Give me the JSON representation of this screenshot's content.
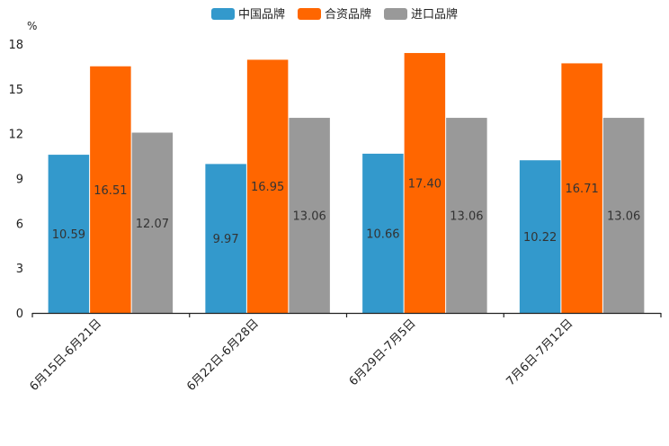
{
  "chart_data": {
    "type": "bar",
    "title": "",
    "xlabel": "",
    "ylabel": "%",
    "ylim": [
      0,
      18
    ],
    "yticks": [
      0,
      3,
      6,
      9,
      12,
      15,
      18
    ],
    "categories": [
      "6月15日-6月21日",
      "6月22日-6月28日",
      "6月29日-7月5日",
      "7月6日-7月12日"
    ],
    "series": [
      {
        "name": "中国品牌",
        "color": "#3399cc",
        "values": [
          10.59,
          9.97,
          10.66,
          10.22
        ]
      },
      {
        "name": "合资品牌",
        "color": "#ff6600",
        "values": [
          16.51,
          16.95,
          17.4,
          16.71
        ]
      },
      {
        "name": "进口品牌",
        "color": "#999999",
        "values": [
          12.07,
          13.06,
          13.06,
          13.06
        ]
      }
    ],
    "legend_position": "top-center",
    "grid": false
  }
}
